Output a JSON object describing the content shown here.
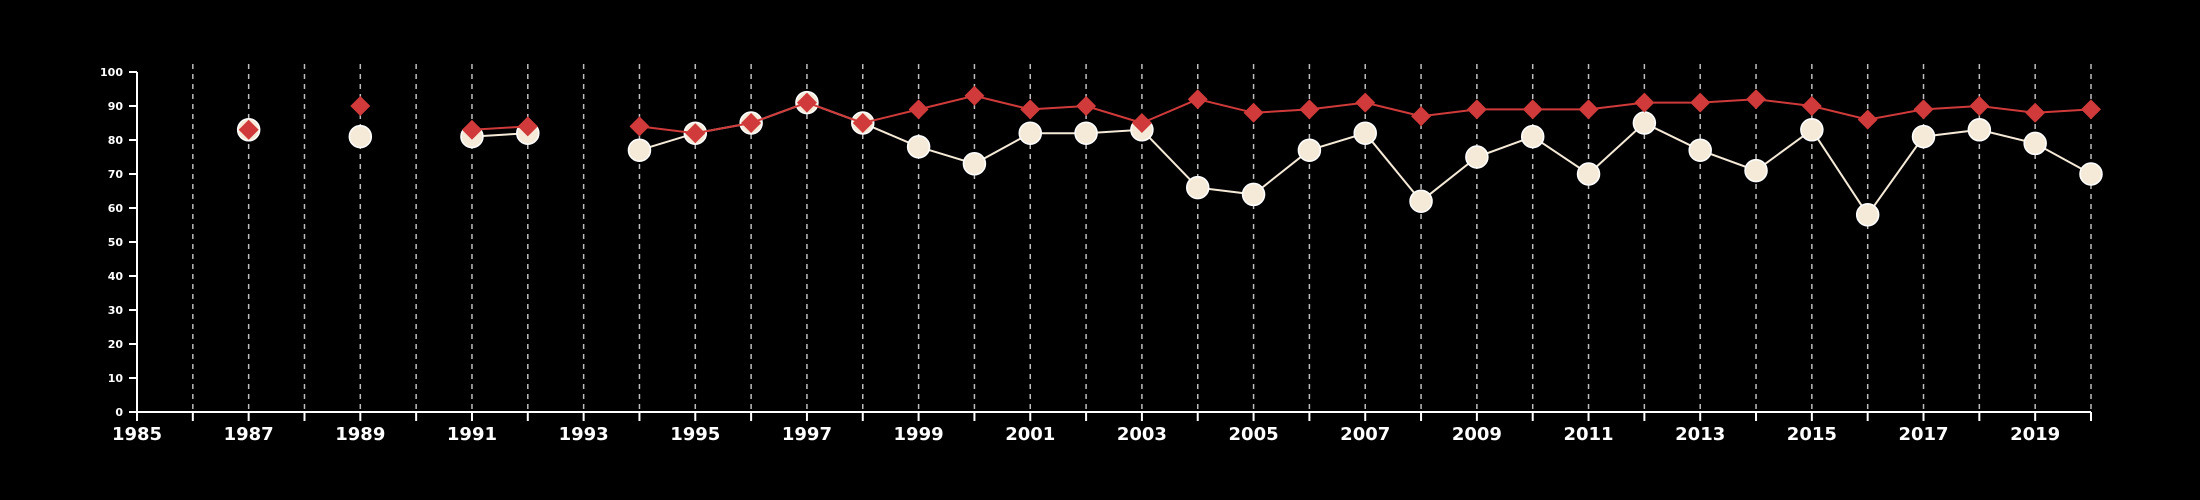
{
  "chart_data": {
    "type": "line",
    "title": "",
    "xlabel": "",
    "ylabel": "",
    "xlim": [
      1985,
      2020
    ],
    "ylim": [
      0,
      100
    ],
    "y_ticks": [
      0,
      10,
      20,
      30,
      40,
      50,
      60,
      70,
      80,
      90,
      100
    ],
    "x_ticks": [
      1985,
      1987,
      1989,
      1991,
      1993,
      1995,
      1997,
      1999,
      2001,
      2003,
      2005,
      2007,
      2009,
      2011,
      2013,
      2015,
      2017,
      2019
    ],
    "gridlines": "vertical dashed at every year",
    "legend": "none",
    "series": [
      {
        "color": "#d03a3a",
        "marker": "diamond",
        "x": [
          1987,
          1989,
          1991,
          1992,
          1994,
          1995,
          1996,
          1997,
          1998,
          1999,
          2000,
          2001,
          2002,
          2003,
          2004,
          2005,
          2006,
          2007,
          2008,
          2009,
          2010,
          2011,
          2012,
          2013,
          2014,
          2015,
          2016,
          2017,
          2018,
          2019,
          2020
        ],
        "values": [
          83,
          90,
          83,
          84,
          84,
          82,
          85,
          91,
          85,
          89,
          93,
          89,
          90,
          85,
          92,
          88,
          89,
          91,
          87,
          89,
          89,
          89,
          91,
          91,
          92,
          90,
          86,
          89,
          90,
          88,
          89
        ]
      },
      {
        "color": "#f5ead8",
        "marker": "circle",
        "x": [
          1987,
          1989,
          1991,
          1992,
          1994,
          1995,
          1996,
          1997,
          1998,
          1999,
          2000,
          2001,
          2002,
          2003,
          2004,
          2005,
          2006,
          2007,
          2008,
          2009,
          2010,
          2011,
          2012,
          2013,
          2014,
          2015,
          2016,
          2017,
          2018,
          2019,
          2020
        ],
        "values": [
          83,
          81,
          81,
          82,
          77,
          82,
          85,
          91,
          85,
          78,
          73,
          82,
          82,
          83,
          66,
          64,
          77,
          82,
          62,
          75,
          81,
          70,
          85,
          77,
          71,
          83,
          58,
          81,
          83,
          79,
          70
        ]
      }
    ]
  }
}
